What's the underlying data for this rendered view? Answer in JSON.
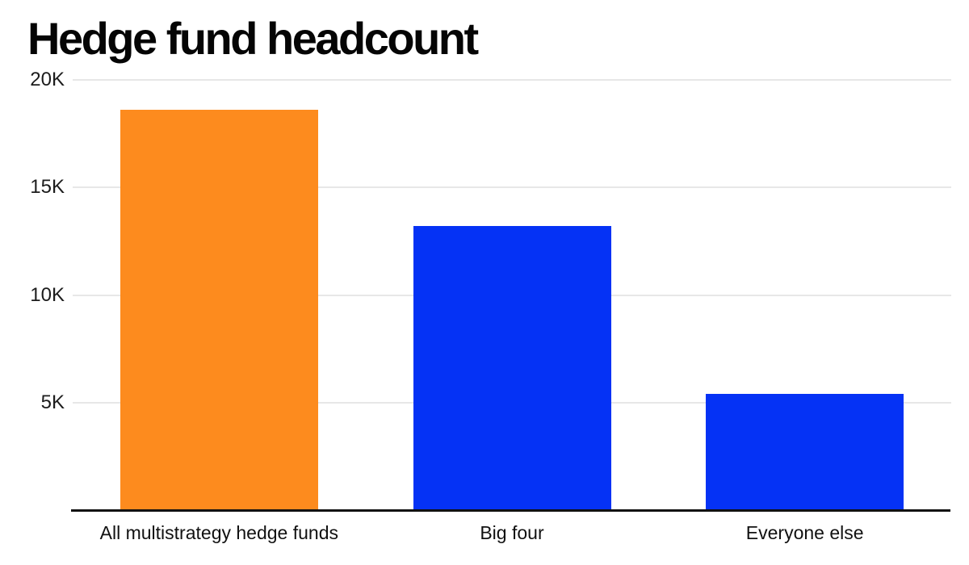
{
  "header": {
    "title": "Hedge fund headcount"
  },
  "chart_data": {
    "type": "bar",
    "title": "Hedge fund headcount",
    "categories": [
      "All multistrategy hedge funds",
      "Big four",
      "Everyone else"
    ],
    "values": [
      18600,
      13200,
      5400
    ],
    "bar_colors": [
      "#fd8b1e",
      "#0532f5",
      "#0532f5"
    ],
    "xlabel": "",
    "ylabel": "",
    "ylim": [
      0,
      20000
    ],
    "yticks": [
      5000,
      10000,
      15000,
      20000
    ],
    "ytick_labels": [
      "5K",
      "10K",
      "15K",
      "20K"
    ],
    "grid": "horizontal-only",
    "legend": "none"
  },
  "colors": {
    "orange_bar": "#fd8b1e",
    "blue_bar": "#0532f5",
    "gridline": "#e7e7e7",
    "axis_line": "#111111",
    "tick_text": "#1c1c1c",
    "title_text": "#050505",
    "background": "#ffffff"
  }
}
